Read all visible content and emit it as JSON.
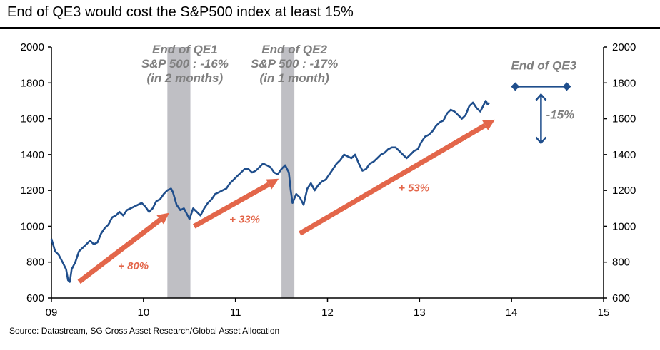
{
  "title": "End of QE3 would cost the S&P500 index at least 15%",
  "source": "Source: Datastream, SG Cross Asset Research/Global Asset Allocation",
  "colors": {
    "series": "#1f4e8c",
    "shade": "#bfbfc4",
    "arrow": "#e3664a",
    "annotation_grey": "#7f7f7f"
  },
  "chart_data": {
    "type": "line",
    "x_ticks": [
      "09",
      "10",
      "11",
      "12",
      "13",
      "14",
      "15"
    ],
    "y_ticks": [
      600,
      800,
      1000,
      1200,
      1400,
      1600,
      1800,
      2000
    ],
    "xlim": [
      2009,
      2015
    ],
    "ylim": [
      600,
      2000
    ],
    "grid": false,
    "series": [
      {
        "values": [
          [
            2009.0,
            930
          ],
          [
            2009.04,
            860
          ],
          [
            2009.08,
            840
          ],
          [
            2009.12,
            800
          ],
          [
            2009.16,
            760
          ],
          [
            2009.18,
            700
          ],
          [
            2009.2,
            690
          ],
          [
            2009.22,
            760
          ],
          [
            2009.26,
            800
          ],
          [
            2009.3,
            860
          ],
          [
            2009.34,
            880
          ],
          [
            2009.38,
            900
          ],
          [
            2009.42,
            920
          ],
          [
            2009.46,
            900
          ],
          [
            2009.5,
            910
          ],
          [
            2009.54,
            960
          ],
          [
            2009.58,
            990
          ],
          [
            2009.62,
            1010
          ],
          [
            2009.66,
            1050
          ],
          [
            2009.7,
            1060
          ],
          [
            2009.74,
            1080
          ],
          [
            2009.78,
            1060
          ],
          [
            2009.82,
            1090
          ],
          [
            2009.86,
            1100
          ],
          [
            2009.9,
            1110
          ],
          [
            2009.94,
            1120
          ],
          [
            2009.98,
            1130
          ],
          [
            2010.02,
            1110
          ],
          [
            2010.06,
            1080
          ],
          [
            2010.1,
            1100
          ],
          [
            2010.14,
            1140
          ],
          [
            2010.18,
            1150
          ],
          [
            2010.22,
            1180
          ],
          [
            2010.26,
            1200
          ],
          [
            2010.3,
            1210
          ],
          [
            2010.32,
            1190
          ],
          [
            2010.36,
            1120
          ],
          [
            2010.4,
            1090
          ],
          [
            2010.44,
            1100
          ],
          [
            2010.48,
            1060
          ],
          [
            2010.5,
            1040
          ],
          [
            2010.54,
            1100
          ],
          [
            2010.58,
            1080
          ],
          [
            2010.62,
            1060
          ],
          [
            2010.66,
            1100
          ],
          [
            2010.7,
            1130
          ],
          [
            2010.74,
            1150
          ],
          [
            2010.78,
            1180
          ],
          [
            2010.82,
            1190
          ],
          [
            2010.86,
            1200
          ],
          [
            2010.9,
            1210
          ],
          [
            2010.94,
            1240
          ],
          [
            2010.98,
            1260
          ],
          [
            2011.02,
            1280
          ],
          [
            2011.06,
            1300
          ],
          [
            2011.1,
            1320
          ],
          [
            2011.14,
            1320
          ],
          [
            2011.18,
            1300
          ],
          [
            2011.22,
            1310
          ],
          [
            2011.26,
            1330
          ],
          [
            2011.3,
            1350
          ],
          [
            2011.34,
            1340
          ],
          [
            2011.38,
            1330
          ],
          [
            2011.42,
            1300
          ],
          [
            2011.46,
            1290
          ],
          [
            2011.5,
            1320
          ],
          [
            2011.54,
            1340
          ],
          [
            2011.58,
            1300
          ],
          [
            2011.6,
            1200
          ],
          [
            2011.62,
            1130
          ],
          [
            2011.66,
            1180
          ],
          [
            2011.7,
            1160
          ],
          [
            2011.74,
            1120
          ],
          [
            2011.78,
            1210
          ],
          [
            2011.82,
            1240
          ],
          [
            2011.86,
            1200
          ],
          [
            2011.9,
            1230
          ],
          [
            2011.94,
            1250
          ],
          [
            2011.98,
            1260
          ],
          [
            2012.02,
            1290
          ],
          [
            2012.06,
            1320
          ],
          [
            2012.1,
            1350
          ],
          [
            2012.14,
            1370
          ],
          [
            2012.18,
            1400
          ],
          [
            2012.22,
            1390
          ],
          [
            2012.26,
            1380
          ],
          [
            2012.3,
            1400
          ],
          [
            2012.34,
            1350
          ],
          [
            2012.38,
            1310
          ],
          [
            2012.42,
            1320
          ],
          [
            2012.46,
            1350
          ],
          [
            2012.5,
            1360
          ],
          [
            2012.54,
            1380
          ],
          [
            2012.58,
            1400
          ],
          [
            2012.62,
            1410
          ],
          [
            2012.66,
            1430
          ],
          [
            2012.7,
            1440
          ],
          [
            2012.74,
            1440
          ],
          [
            2012.78,
            1420
          ],
          [
            2012.82,
            1400
          ],
          [
            2012.86,
            1380
          ],
          [
            2012.9,
            1400
          ],
          [
            2012.94,
            1420
          ],
          [
            2012.98,
            1430
          ],
          [
            2013.02,
            1470
          ],
          [
            2013.06,
            1500
          ],
          [
            2013.1,
            1510
          ],
          [
            2013.14,
            1530
          ],
          [
            2013.18,
            1560
          ],
          [
            2013.22,
            1580
          ],
          [
            2013.26,
            1590
          ],
          [
            2013.3,
            1630
          ],
          [
            2013.34,
            1650
          ],
          [
            2013.38,
            1640
          ],
          [
            2013.42,
            1620
          ],
          [
            2013.46,
            1600
          ],
          [
            2013.5,
            1620
          ],
          [
            2013.54,
            1670
          ],
          [
            2013.58,
            1690
          ],
          [
            2013.62,
            1660
          ],
          [
            2013.66,
            1640
          ],
          [
            2013.7,
            1680
          ],
          [
            2013.72,
            1700
          ],
          [
            2013.74,
            1680
          ],
          [
            2013.76,
            1690
          ]
        ]
      }
    ],
    "shaded_periods": [
      {
        "start": 2010.26,
        "end": 2010.51
      },
      {
        "start": 2011.5,
        "end": 2011.64
      }
    ],
    "trend_arrows": [
      {
        "from": [
          2009.3,
          690
        ],
        "to": [
          2010.28,
          1075
        ],
        "label": "+ 80%",
        "label_at": [
          2009.89,
          760
        ]
      },
      {
        "from": [
          2010.55,
          1000
        ],
        "to": [
          2011.47,
          1265
        ],
        "label": "+ 33%",
        "label_at": [
          2011.1,
          1020
        ]
      },
      {
        "from": [
          2011.7,
          960
        ],
        "to": [
          2013.82,
          1595
        ],
        "label": "+ 53%",
        "label_at": [
          2012.94,
          1195
        ]
      }
    ],
    "annotations": [
      {
        "lines": [
          "End of QE1",
          "S&P 500 : -16%",
          "(in 2 months)"
        ],
        "at": [
          2010.45,
          1965
        ]
      },
      {
        "lines": [
          "End of QE2",
          "S&P 500 : -17%",
          "(in 1 month)"
        ],
        "at": [
          2011.64,
          1965
        ]
      },
      {
        "lines": [
          "End of QE3"
        ],
        "at": [
          2014.35,
          1875
        ]
      },
      {
        "lines": [
          "-15%"
        ],
        "at": [
          2014.53,
          1600
        ]
      }
    ],
    "qe3_marker": {
      "horizontal_level": 1780,
      "x_from": 2014.04,
      "x_to": 2014.6,
      "drop_from": 1735,
      "drop_to": 1465,
      "drop_x": 2014.32
    }
  }
}
